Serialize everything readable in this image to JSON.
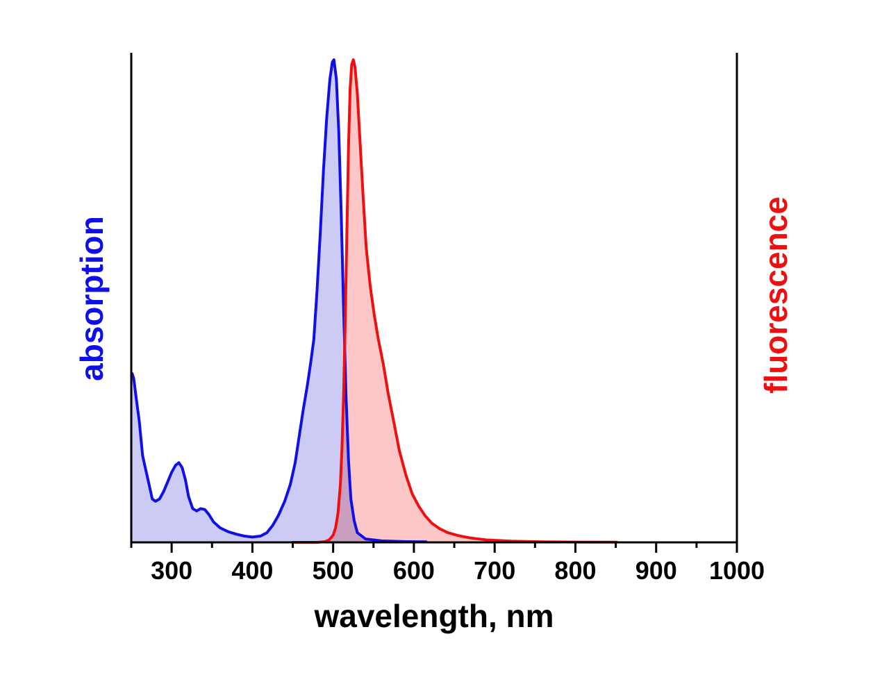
{
  "chart_data": {
    "type": "area",
    "xlabel": "wavelength, nm",
    "y_left_label": "absorption",
    "y_right_label": "fluorescence",
    "xlim": [
      250,
      1000
    ],
    "ylim": [
      0,
      1
    ],
    "x_ticks": [
      300,
      400,
      500,
      600,
      700,
      800,
      900,
      1000
    ],
    "x_minor_step": 50,
    "grid": false,
    "colors": {
      "absorption_line": "#1010e6",
      "absorption_fill": "#c8c8f4",
      "fluorescence_line": "#ee1010",
      "fluorescence_fill": "#fdc4c4",
      "axis": "#000000"
    },
    "series": [
      {
        "name": "absorption",
        "axis": "left",
        "points": [
          [
            251,
            0.35
          ],
          [
            253,
            0.34
          ],
          [
            256,
            0.3
          ],
          [
            260,
            0.25
          ],
          [
            264,
            0.18
          ],
          [
            268,
            0.15
          ],
          [
            272,
            0.12
          ],
          [
            276,
            0.09
          ],
          [
            280,
            0.085
          ],
          [
            285,
            0.09
          ],
          [
            290,
            0.105
          ],
          [
            295,
            0.125
          ],
          [
            300,
            0.145
          ],
          [
            305,
            0.16
          ],
          [
            309,
            0.165
          ],
          [
            313,
            0.155
          ],
          [
            317,
            0.13
          ],
          [
            321,
            0.095
          ],
          [
            326,
            0.07
          ],
          [
            331,
            0.065
          ],
          [
            336,
            0.07
          ],
          [
            341,
            0.068
          ],
          [
            346,
            0.058
          ],
          [
            352,
            0.042
          ],
          [
            360,
            0.03
          ],
          [
            370,
            0.022
          ],
          [
            380,
            0.017
          ],
          [
            390,
            0.013
          ],
          [
            400,
            0.011
          ],
          [
            410,
            0.013
          ],
          [
            418,
            0.02
          ],
          [
            425,
            0.035
          ],
          [
            432,
            0.055
          ],
          [
            440,
            0.085
          ],
          [
            447,
            0.12
          ],
          [
            453,
            0.165
          ],
          [
            458,
            0.22
          ],
          [
            463,
            0.275
          ],
          [
            468,
            0.325
          ],
          [
            472,
            0.37
          ],
          [
            476,
            0.42
          ],
          [
            480,
            0.52
          ],
          [
            484,
            0.64
          ],
          [
            488,
            0.77
          ],
          [
            492,
            0.88
          ],
          [
            496,
            0.96
          ],
          [
            499,
            0.995
          ],
          [
            501,
            1.0
          ],
          [
            504,
            0.96
          ],
          [
            507,
            0.85
          ],
          [
            510,
            0.68
          ],
          [
            513,
            0.48
          ],
          [
            516,
            0.3
          ],
          [
            519,
            0.17
          ],
          [
            522,
            0.09
          ],
          [
            526,
            0.045
          ],
          [
            530,
            0.02
          ],
          [
            540,
            0.007
          ],
          [
            560,
            0.003
          ],
          [
            590,
            0.0015
          ],
          [
            615,
            0.001
          ]
        ]
      },
      {
        "name": "fluorescence",
        "axis": "right",
        "points": [
          [
            450,
            0.0
          ],
          [
            480,
            0.0
          ],
          [
            490,
            0.0015
          ],
          [
            495,
            0.005
          ],
          [
            500,
            0.015
          ],
          [
            503,
            0.03
          ],
          [
            506,
            0.06
          ],
          [
            509,
            0.12
          ],
          [
            511,
            0.2
          ],
          [
            513,
            0.31
          ],
          [
            515,
            0.46
          ],
          [
            517,
            0.64
          ],
          [
            519,
            0.82
          ],
          [
            521,
            0.94
          ],
          [
            523,
            0.99
          ],
          [
            525,
            1.0
          ],
          [
            527,
            0.985
          ],
          [
            530,
            0.93
          ],
          [
            533,
            0.84
          ],
          [
            537,
            0.72
          ],
          [
            541,
            0.61
          ],
          [
            546,
            0.53
          ],
          [
            551,
            0.47
          ],
          [
            556,
            0.42
          ],
          [
            562,
            0.37
          ],
          [
            568,
            0.31
          ],
          [
            575,
            0.25
          ],
          [
            582,
            0.19
          ],
          [
            590,
            0.14
          ],
          [
            598,
            0.1
          ],
          [
            606,
            0.075
          ],
          [
            614,
            0.055
          ],
          [
            622,
            0.04
          ],
          [
            632,
            0.028
          ],
          [
            642,
            0.02
          ],
          [
            655,
            0.014
          ],
          [
            670,
            0.009
          ],
          [
            690,
            0.005
          ],
          [
            720,
            0.0025
          ],
          [
            760,
            0.001
          ],
          [
            800,
            0.0006
          ],
          [
            851,
            0.0003
          ]
        ]
      }
    ]
  }
}
